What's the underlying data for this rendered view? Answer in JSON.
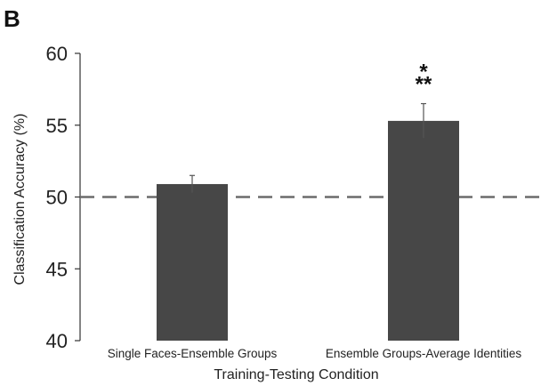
{
  "panel_label": "B",
  "chart_data": {
    "type": "bar",
    "categories": [
      "Single Faces-Ensemble Groups",
      "Ensemble Groups-Average Identities"
    ],
    "values": [
      50.9,
      55.3
    ],
    "errors": [
      0.6,
      1.2
    ],
    "significance": [
      "",
      "*\n**"
    ],
    "significance_lines": [
      [],
      [
        "*",
        "**"
      ]
    ],
    "xlabel": "Training-Testing Condition",
    "ylabel": "Classification Accuracy (%)",
    "ylim": [
      40,
      60
    ],
    "yticks": [
      "40",
      "45",
      "50",
      "55",
      "60"
    ],
    "chance_level": 50,
    "bar_color": "#474747",
    "reference_line_color": "#6b6b6b",
    "grid": false
  }
}
